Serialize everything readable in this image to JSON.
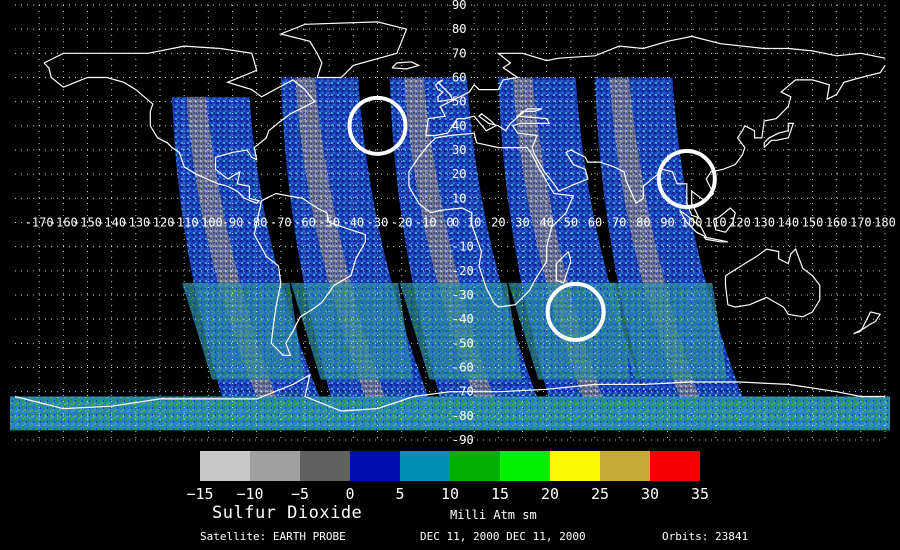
{
  "map": {
    "type": "global satellite swath map",
    "projection": "equirectangular",
    "lon_range": [
      -180,
      180
    ],
    "lat_range": [
      -90,
      90
    ],
    "grid": true,
    "lon_ticks": [
      -170,
      -160,
      -150,
      -140,
      -130,
      -120,
      -110,
      -100,
      -90,
      -80,
      -70,
      -60,
      -50,
      -40,
      -30,
      -20,
      -10,
      0,
      10,
      20,
      30,
      40,
      50,
      60,
      70,
      80,
      90,
      100,
      110,
      120,
      130,
      140,
      150,
      160,
      170,
      180
    ],
    "lat_ticks": [
      90,
      80,
      70,
      60,
      50,
      40,
      30,
      20,
      10,
      0,
      -10,
      -20,
      -30,
      -40,
      -50,
      -60,
      -70,
      -80,
      -90
    ],
    "highlight_circles": [
      {
        "lon": -30,
        "lat": 40
      },
      {
        "lon": 98,
        "lat": 18
      },
      {
        "lon": 52,
        "lat": -37
      }
    ]
  },
  "colorbar": {
    "swatches": [
      "#c8c8c8",
      "#a0a0a0",
      "#606060",
      "#0010b0",
      "#0090b8",
      "#00b000",
      "#00f000",
      "#f8f800",
      "#c8a838",
      "#f80000"
    ],
    "tick_labels": [
      "−15",
      "−10",
      "−5",
      "0",
      "5",
      "10",
      "15",
      "20",
      "25",
      "30",
      "35"
    ]
  },
  "labels": {
    "field": "Sulfur Dioxide",
    "units": "Milli Atm sm",
    "satellite": "Satellite: EARTH PROBE",
    "dates": "DEC 11, 2000 DEC 11, 2000",
    "orbits": "Orbits: 23841"
  }
}
